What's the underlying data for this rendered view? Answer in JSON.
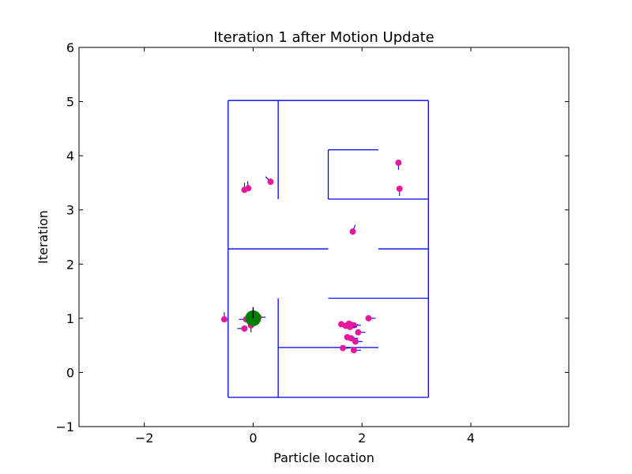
{
  "chart_data": {
    "type": "scatter",
    "title": "Iteration 1 after Motion Update",
    "xlabel": "Particle location",
    "ylabel": "Iteration",
    "xlim": [
      -3.2,
      5.8
    ],
    "ylim": [
      -1,
      6
    ],
    "xticks": [
      -2,
      0,
      2,
      4
    ],
    "xtick_labels": [
      "−2",
      "0",
      "2",
      "4"
    ],
    "yticks": [
      -1,
      0,
      1,
      2,
      3,
      4,
      5,
      6
    ],
    "ytick_labels": [
      "−1",
      "0",
      "1",
      "2",
      "3",
      "4",
      "5",
      "6"
    ],
    "grid": false,
    "legend": "none",
    "colors": {
      "walls": "#0000ff",
      "particles": "#e6199e",
      "robot": "#008000",
      "heading": "#000000",
      "frame": "#000000"
    },
    "walls": [
      [
        [
          -0.46,
          -0.46
        ],
        [
          -0.46,
          5.02
        ]
      ],
      [
        [
          -0.46,
          5.02
        ],
        [
          3.22,
          5.02
        ]
      ],
      [
        [
          3.22,
          5.02
        ],
        [
          3.22,
          -0.46
        ]
      ],
      [
        [
          3.22,
          -0.46
        ],
        [
          -0.46,
          -0.46
        ]
      ],
      [
        [
          0.46,
          5.02
        ],
        [
          0.46,
          3.2
        ]
      ],
      [
        [
          1.38,
          3.2
        ],
        [
          3.22,
          3.2
        ]
      ],
      [
        [
          1.38,
          3.2
        ],
        [
          1.38,
          4.11
        ]
      ],
      [
        [
          1.38,
          4.11
        ],
        [
          2.3,
          4.11
        ]
      ],
      [
        [
          -0.46,
          2.28
        ],
        [
          1.38,
          2.28
        ]
      ],
      [
        [
          2.3,
          2.28
        ],
        [
          3.22,
          2.28
        ]
      ],
      [
        [
          0.46,
          1.37
        ],
        [
          0.46,
          -0.46
        ]
      ],
      [
        [
          1.38,
          1.37
        ],
        [
          3.22,
          1.37
        ]
      ],
      [
        [
          0.46,
          0.46
        ],
        [
          2.3,
          0.46
        ]
      ]
    ],
    "robot": {
      "x": 0.0,
      "y": 1.0,
      "heading_deg": 90
    },
    "particles": [
      {
        "x": 2.67,
        "y": 3.87,
        "heading_deg": -90
      },
      {
        "x": 2.69,
        "y": 3.39,
        "heading_deg": -90
      },
      {
        "x": 0.32,
        "y": 3.52,
        "heading_deg": 135
      },
      {
        "x": -0.16,
        "y": 3.37,
        "heading_deg": 90
      },
      {
        "x": -0.09,
        "y": 3.4,
        "heading_deg": 95
      },
      {
        "x": 1.83,
        "y": 2.6,
        "heading_deg": 70
      },
      {
        "x": -0.53,
        "y": 0.98,
        "heading_deg": 90
      },
      {
        "x": -0.13,
        "y": 0.98,
        "heading_deg": 180
      },
      {
        "x": 0.1,
        "y": 1.02,
        "heading_deg": 0
      },
      {
        "x": -0.04,
        "y": 0.87,
        "heading_deg": 270
      },
      {
        "x": -0.16,
        "y": 0.81,
        "heading_deg": 180
      },
      {
        "x": 1.62,
        "y": 0.89,
        "heading_deg": 0
      },
      {
        "x": 1.7,
        "y": 0.86,
        "heading_deg": 0
      },
      {
        "x": 1.76,
        "y": 0.9,
        "heading_deg": 0
      },
      {
        "x": 1.8,
        "y": 0.88,
        "heading_deg": 0
      },
      {
        "x": 1.85,
        "y": 0.87,
        "heading_deg": 0
      },
      {
        "x": 1.78,
        "y": 0.84,
        "heading_deg": 0
      },
      {
        "x": 2.12,
        "y": 1.0,
        "heading_deg": 0
      },
      {
        "x": 1.93,
        "y": 0.74,
        "heading_deg": 0
      },
      {
        "x": 1.73,
        "y": 0.65,
        "heading_deg": 0
      },
      {
        "x": 1.8,
        "y": 0.63,
        "heading_deg": 0
      },
      {
        "x": 1.88,
        "y": 0.57,
        "heading_deg": 0
      },
      {
        "x": 1.65,
        "y": 0.45,
        "heading_deg": 0
      },
      {
        "x": 1.85,
        "y": 0.41,
        "heading_deg": 0
      }
    ]
  }
}
